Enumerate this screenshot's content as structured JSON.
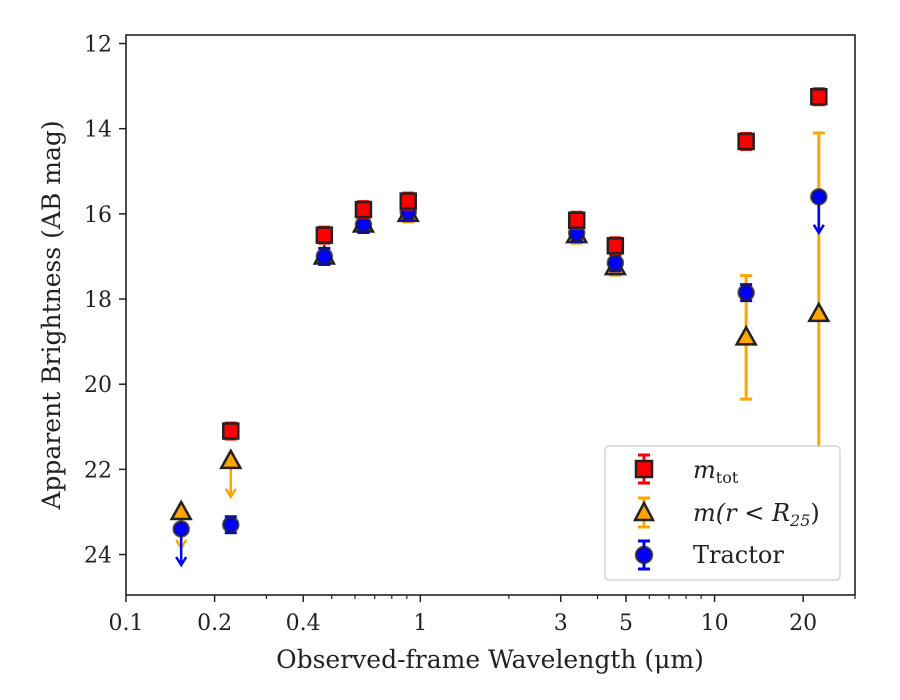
{
  "chart_data": {
    "type": "scatter",
    "xlabel": "Observed-frame Wavelength (μm)",
    "ylabel": "Apparent Brightness (AB mag)",
    "x_scale": "log",
    "xlim": [
      0.1,
      30
    ],
    "ylim": [
      24.95,
      11.8
    ],
    "y_inverted": true,
    "x_ticks": [
      0.1,
      0.2,
      0.4,
      1,
      3,
      5,
      10,
      20
    ],
    "x_tick_labels": [
      "0.1",
      "0.2",
      "0.4",
      "1",
      "3",
      "5",
      "10",
      "20"
    ],
    "x_minor_ticks": [
      0.3,
      0.5,
      0.6,
      0.7,
      0.8,
      0.9,
      2,
      4,
      6,
      7,
      8,
      9,
      30
    ],
    "y_ticks": [
      12,
      14,
      16,
      18,
      20,
      22,
      24
    ],
    "y_tick_labels": [
      "12",
      "14",
      "16",
      "18",
      "20",
      "22",
      "24"
    ],
    "legend": {
      "placement": "lower-right",
      "entries": [
        {
          "label_main": "m",
          "label_sub": "tot",
          "label_rest": ""
        },
        {
          "label_main": "m(r < R",
          "label_sub": "25",
          "label_rest": ")"
        },
        {
          "label_main": "Tractor",
          "label_sub": "",
          "label_rest": ""
        }
      ]
    },
    "series": [
      {
        "marker": "square",
        "color": "#ff0000",
        "edge_color": "#222222",
        "error_color": "#ff0000",
        "points": [
          {
            "x": 0.227,
            "y": 21.1
          },
          {
            "x": 0.472,
            "y": 16.5
          },
          {
            "x": 0.641,
            "y": 15.9
          },
          {
            "x": 0.91,
            "y": 15.7
          },
          {
            "x": 3.4,
            "y": 16.15
          },
          {
            "x": 4.6,
            "y": 16.75
          },
          {
            "x": 12.8,
            "y": 14.3
          },
          {
            "x": 22.6,
            "y": 13.25
          }
        ]
      },
      {
        "marker": "triangle",
        "color": "#ffa500",
        "edge_color": "#222222",
        "error_color": "#ffa500",
        "points": [
          {
            "x": 0.154,
            "y": 23.0,
            "upper_limit": true
          },
          {
            "x": 0.227,
            "y": 21.8,
            "upper_limit": true
          },
          {
            "x": 0.472,
            "y": 17.0
          },
          {
            "x": 0.641,
            "y": 16.25
          },
          {
            "x": 0.91,
            "y": 16.0
          },
          {
            "x": 3.4,
            "y": 16.5
          },
          {
            "x": 4.6,
            "y": 17.25
          },
          {
            "x": 12.8,
            "y": 18.9,
            "yerr": [
              1.45,
              1.45
            ]
          },
          {
            "x": 22.6,
            "y": 18.35,
            "yerr": [
              4.25,
              4.25
            ]
          }
        ]
      },
      {
        "marker": "circle",
        "color": "#0000ff",
        "edge_color": "#222222",
        "error_color": "#0000ff",
        "points": [
          {
            "x": 0.154,
            "y": 23.4,
            "upper_limit": true
          },
          {
            "x": 0.227,
            "y": 23.3
          },
          {
            "x": 0.472,
            "y": 17.0
          },
          {
            "x": 0.641,
            "y": 16.25
          },
          {
            "x": 0.91,
            "y": 15.95
          },
          {
            "x": 3.4,
            "y": 16.45
          },
          {
            "x": 4.6,
            "y": 17.15
          },
          {
            "x": 12.8,
            "y": 17.85
          },
          {
            "x": 22.6,
            "y": 15.6,
            "upper_limit": true
          }
        ]
      }
    ]
  }
}
